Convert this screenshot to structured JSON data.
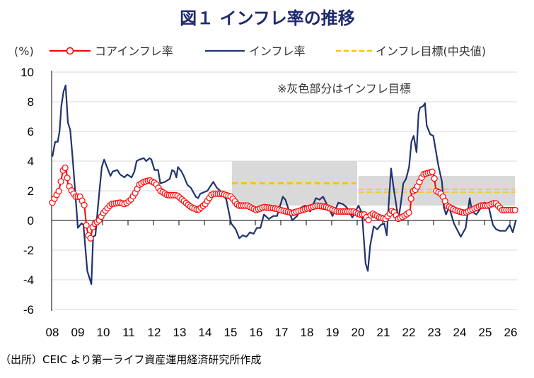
{
  "chart_data": {
    "type": "line",
    "title": "図１ インフレ率の推移",
    "ylabel": "(%)",
    "xlabel": "",
    "ylim": [
      -6,
      10
    ],
    "yticks": [
      10,
      8,
      6,
      4,
      2,
      0,
      -2,
      -4,
      -6
    ],
    "xlim": [
      2008,
      2026.3
    ],
    "xtick_labels": [
      "08",
      "09",
      "10",
      "11",
      "12",
      "13",
      "14",
      "15",
      "16",
      "17",
      "18",
      "19",
      "20",
      "21",
      "22",
      "23",
      "24",
      "25",
      "26"
    ],
    "grid": true,
    "legend_position": "top",
    "annotation": "※灰色部分はインフレ目標",
    "source": "（出所）CEIC より第一ライフ資産運用経済研究所作成",
    "colors": {
      "core": "#ff0000",
      "headline": "#1f3470",
      "target": "#ffc000",
      "band": "#d9d9d9",
      "title": "#1f2a6e"
    },
    "series": [
      {
        "name": "コアインフレ率",
        "style": "line-with-circle-markers",
        "points": [
          [
            2008.03,
            1.2
          ],
          [
            2008.15,
            1.6
          ],
          [
            2008.27,
            1.9
          ],
          [
            2008.36,
            2.6
          ],
          [
            2008.45,
            3.4
          ],
          [
            2008.56,
            3.6
          ],
          [
            2008.64,
            2.5
          ],
          [
            2008.75,
            2.1
          ],
          [
            2008.94,
            1.6
          ],
          [
            2009.12,
            1.6
          ],
          [
            2009.29,
            1.0
          ],
          [
            2009.36,
            -0.3
          ],
          [
            2009.44,
            -1.0
          ],
          [
            2009.53,
            -1.2
          ],
          [
            2009.63,
            -0.3
          ],
          [
            2009.86,
            0.0
          ],
          [
            2010.03,
            0.5
          ],
          [
            2010.33,
            1.1
          ],
          [
            2010.69,
            1.2
          ],
          [
            2010.88,
            1.1
          ],
          [
            2011.11,
            1.4
          ],
          [
            2011.3,
            1.9
          ],
          [
            2011.44,
            2.4
          ],
          [
            2011.62,
            2.6
          ],
          [
            2011.85,
            2.7
          ],
          [
            2012.08,
            2.5
          ],
          [
            2012.27,
            2.0
          ],
          [
            2012.55,
            1.7
          ],
          [
            2012.92,
            1.7
          ],
          [
            2013.19,
            1.3
          ],
          [
            2013.47,
            0.9
          ],
          [
            2013.75,
            0.7
          ],
          [
            2014.03,
            1.1
          ],
          [
            2014.31,
            1.8
          ],
          [
            2014.68,
            1.8
          ],
          [
            2015.05,
            1.6
          ],
          [
            2015.32,
            1.0
          ],
          [
            2015.69,
            1.0
          ],
          [
            2016.02,
            0.7
          ],
          [
            2016.34,
            0.9
          ],
          [
            2016.81,
            0.8
          ],
          [
            2016.99,
            0.7
          ],
          [
            2017.45,
            0.5
          ],
          [
            2017.83,
            0.7
          ],
          [
            2018.43,
            1.0
          ],
          [
            2018.8,
            0.9
          ],
          [
            2019.21,
            0.6
          ],
          [
            2019.86,
            0.6
          ],
          [
            2020.09,
            0.4
          ],
          [
            2020.28,
            0.4
          ],
          [
            2020.46,
            0.0
          ],
          [
            2020.56,
            0.5
          ],
          [
            2020.88,
            0.2
          ],
          [
            2021.11,
            0.1
          ],
          [
            2021.39,
            0.7
          ],
          [
            2021.62,
            0.1
          ],
          [
            2021.85,
            0.3
          ],
          [
            2022.08,
            0.6
          ],
          [
            2022.13,
            1.9
          ],
          [
            2022.31,
            2.1
          ],
          [
            2022.45,
            2.6
          ],
          [
            2022.59,
            3.1
          ],
          [
            2022.78,
            3.2
          ],
          [
            2022.99,
            3.3
          ],
          [
            2023.1,
            2.0
          ],
          [
            2023.29,
            1.8
          ],
          [
            2023.4,
            1.5
          ],
          [
            2023.52,
            1.0
          ],
          [
            2023.84,
            0.7
          ],
          [
            2024.21,
            0.5
          ],
          [
            2024.49,
            0.7
          ],
          [
            2024.86,
            1.0
          ],
          [
            2025.14,
            1.0
          ],
          [
            2025.42,
            1.2
          ],
          [
            2025.69,
            0.7
          ],
          [
            2026.23,
            0.7
          ]
        ]
      },
      {
        "name": "インフレ率",
        "style": "line",
        "points": [
          [
            2008.03,
            4.3
          ],
          [
            2008.14,
            5.3
          ],
          [
            2008.24,
            5.3
          ],
          [
            2008.31,
            6.0
          ],
          [
            2008.38,
            7.7
          ],
          [
            2008.47,
            8.7
          ],
          [
            2008.55,
            9.1
          ],
          [
            2008.64,
            6.6
          ],
          [
            2008.73,
            6.1
          ],
          [
            2008.84,
            3.9
          ],
          [
            2009.03,
            -0.5
          ],
          [
            2009.17,
            -0.2
          ],
          [
            2009.25,
            -0.3
          ],
          [
            2009.4,
            -3.4
          ],
          [
            2009.56,
            -4.3
          ],
          [
            2009.63,
            -1.1
          ],
          [
            2009.72,
            -1.0
          ],
          [
            2009.86,
            1.7
          ],
          [
            2009.97,
            3.6
          ],
          [
            2010.06,
            4.1
          ],
          [
            2010.31,
            3.0
          ],
          [
            2010.4,
            3.3
          ],
          [
            2010.58,
            3.4
          ],
          [
            2010.69,
            3.1
          ],
          [
            2010.86,
            2.9
          ],
          [
            2010.97,
            3.1
          ],
          [
            2011.14,
            2.9
          ],
          [
            2011.25,
            3.3
          ],
          [
            2011.34,
            4.0
          ],
          [
            2011.44,
            4.1
          ],
          [
            2011.62,
            4.2
          ],
          [
            2011.71,
            4.0
          ],
          [
            2011.85,
            4.2
          ],
          [
            2011.92,
            4.1
          ],
          [
            2012.04,
            3.4
          ],
          [
            2012.18,
            3.4
          ],
          [
            2012.27,
            2.5
          ],
          [
            2012.45,
            2.6
          ],
          [
            2012.64,
            2.8
          ],
          [
            2012.73,
            3.4
          ],
          [
            2012.82,
            3.3
          ],
          [
            2012.9,
            2.9
          ],
          [
            2012.96,
            3.6
          ],
          [
            2013.1,
            3.3
          ],
          [
            2013.19,
            3.0
          ],
          [
            2013.33,
            2.4
          ],
          [
            2013.47,
            2.2
          ],
          [
            2013.66,
            1.6
          ],
          [
            2013.75,
            1.5
          ],
          [
            2013.84,
            1.8
          ],
          [
            2013.98,
            1.9
          ],
          [
            2014.12,
            2.0
          ],
          [
            2014.23,
            2.3
          ],
          [
            2014.35,
            2.6
          ],
          [
            2014.49,
            2.2
          ],
          [
            2014.68,
            1.9
          ],
          [
            2014.86,
            1.4
          ],
          [
            2015.05,
            -0.2
          ],
          [
            2015.23,
            -0.6
          ],
          [
            2015.37,
            -1.2
          ],
          [
            2015.51,
            -1.0
          ],
          [
            2015.65,
            -1.1
          ],
          [
            2015.79,
            -0.8
          ],
          [
            2015.93,
            -0.9
          ],
          [
            2016.06,
            -0.5
          ],
          [
            2016.2,
            -0.5
          ],
          [
            2016.34,
            0.4
          ],
          [
            2016.53,
            0.1
          ],
          [
            2016.71,
            0.3
          ],
          [
            2016.85,
            0.3
          ],
          [
            2017.08,
            1.6
          ],
          [
            2017.18,
            1.4
          ],
          [
            2017.45,
            0.0
          ],
          [
            2017.64,
            0.3
          ],
          [
            2017.83,
            0.9
          ],
          [
            2017.96,
            1.0
          ],
          [
            2018.15,
            0.6
          ],
          [
            2018.38,
            1.5
          ],
          [
            2018.52,
            1.4
          ],
          [
            2018.66,
            1.6
          ],
          [
            2019.03,
            0.3
          ],
          [
            2019.26,
            1.2
          ],
          [
            2019.44,
            1.1
          ],
          [
            2019.58,
            0.9
          ],
          [
            2019.81,
            0.2
          ],
          [
            2020.05,
            1.0
          ],
          [
            2020.19,
            0.5
          ],
          [
            2020.33,
            -2.9
          ],
          [
            2020.42,
            -3.4
          ],
          [
            2020.51,
            -1.7
          ],
          [
            2020.65,
            -0.4
          ],
          [
            2020.79,
            -0.6
          ],
          [
            2020.93,
            -0.3
          ],
          [
            2021.06,
            -0.2
          ],
          [
            2021.16,
            -1.0
          ],
          [
            2021.23,
            0.9
          ],
          [
            2021.33,
            3.5
          ],
          [
            2021.44,
            2.1
          ],
          [
            2021.62,
            0.1
          ],
          [
            2021.71,
            1.1
          ],
          [
            2021.81,
            2.5
          ],
          [
            2021.92,
            2.8
          ],
          [
            2022.04,
            3.6
          ],
          [
            2022.13,
            5.3
          ],
          [
            2022.22,
            5.7
          ],
          [
            2022.33,
            4.6
          ],
          [
            2022.41,
            7.2
          ],
          [
            2022.47,
            7.6
          ],
          [
            2022.59,
            7.7
          ],
          [
            2022.66,
            7.9
          ],
          [
            2022.73,
            6.4
          ],
          [
            2022.87,
            5.8
          ],
          [
            2022.99,
            5.7
          ],
          [
            2023.19,
            3.7
          ],
          [
            2023.33,
            2.6
          ],
          [
            2023.4,
            0.9
          ],
          [
            2023.49,
            0.4
          ],
          [
            2023.61,
            0.9
          ],
          [
            2023.8,
            -0.2
          ],
          [
            2024.07,
            -1.1
          ],
          [
            2024.26,
            -0.5
          ],
          [
            2024.42,
            1.5
          ],
          [
            2024.51,
            0.6
          ],
          [
            2024.68,
            0.4
          ],
          [
            2025.0,
            1.2
          ],
          [
            2025.14,
            1.1
          ],
          [
            2025.33,
            -0.3
          ],
          [
            2025.46,
            -0.6
          ],
          [
            2025.6,
            -0.7
          ],
          [
            2025.83,
            -0.7
          ],
          [
            2025.99,
            -0.3
          ],
          [
            2026.11,
            -0.8
          ],
          [
            2026.23,
            0.0
          ]
        ]
      },
      {
        "name": "インフレ目標(中央値)",
        "style": "dashed",
        "segments": [
          {
            "from": 2015.08,
            "to": 2020.0,
            "value": 2.5
          },
          {
            "from": 2020.05,
            "to": 2026.2,
            "value": 2.0
          }
        ]
      }
    ],
    "target_bands": [
      {
        "from": 2015.08,
        "to": 2020.0,
        "low": 1,
        "high": 4
      },
      {
        "from": 2020.05,
        "to": 2026.2,
        "low": 1,
        "high": 3
      }
    ]
  }
}
